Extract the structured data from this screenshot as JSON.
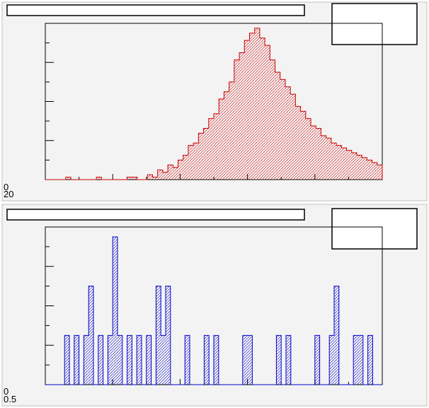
{
  "colors": {
    "pad_fill": "#f3f3f3",
    "pad_border": "#c0c0c0",
    "frame": "#000000",
    "top_hist": "#cc0000",
    "bottom_hist": "#0000cc",
    "box_fill": "#ffffff"
  },
  "chart_data": [
    {
      "type": "bar",
      "style": "step-histogram-hatched",
      "title": "",
      "xlabel": "",
      "ylabel": "",
      "ytick_labels": [
        "0",
        "20"
      ],
      "xlim": [
        0,
        66
      ],
      "ylim": [
        0,
        64
      ],
      "series": [
        {
          "values": [
            0,
            0,
            0,
            0,
            1,
            0,
            0,
            0,
            0,
            0,
            1,
            0,
            0,
            0,
            0,
            0,
            1,
            1,
            0,
            0,
            2,
            1,
            4,
            3,
            6,
            5,
            8,
            10,
            14,
            15,
            19,
            21,
            25,
            27,
            33,
            36,
            40,
            49,
            52,
            57,
            60,
            62,
            58,
            55,
            49,
            44,
            41,
            38,
            35,
            30,
            28,
            25,
            22,
            21,
            18,
            17,
            15,
            14,
            13,
            12,
            11,
            10,
            9,
            8,
            7,
            6
          ]
        }
      ]
    },
    {
      "type": "bar",
      "style": "step-histogram-hatched",
      "title": "",
      "xlabel": "",
      "ylabel": "",
      "ytick_labels": [
        "0",
        "0.5"
      ],
      "xlim": [
        0,
        70
      ],
      "ylim": [
        0,
        6.4
      ],
      "series": [
        {
          "values": [
            0,
            0,
            0,
            0,
            2,
            0,
            2,
            0,
            2,
            4,
            0,
            2,
            0,
            2,
            6,
            2,
            0,
            2,
            0,
            2,
            0,
            2,
            0,
            4,
            2,
            4,
            0,
            0,
            0,
            2,
            0,
            0,
            0,
            2,
            0,
            2,
            0,
            0,
            0,
            0,
            0,
            2,
            2,
            0,
            0,
            0,
            0,
            0,
            2,
            0,
            2,
            0,
            0,
            0,
            0,
            0,
            2,
            0,
            0,
            2,
            4,
            0,
            0,
            0,
            2,
            2,
            0,
            2,
            0,
            0
          ]
        }
      ]
    }
  ]
}
